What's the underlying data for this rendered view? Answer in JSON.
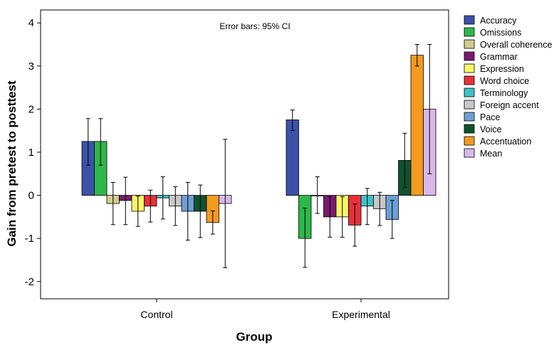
{
  "chart_data": {
    "type": "bar",
    "annotation": "Error bars: 95% CI",
    "xlabel": "Group",
    "ylabel": "Gain from pretest to posttest",
    "categories": [
      "Control",
      "Experimental"
    ],
    "ylim": [
      -2.4,
      4.3
    ],
    "yticks": [
      -2,
      -1,
      0,
      1,
      2,
      3,
      4
    ],
    "grid": false,
    "legend_position": "right",
    "series": [
      {
        "name": "Accuracy",
        "color": "#3B52A8",
        "values": [
          1.25,
          1.75
        ],
        "ci_low": [
          0.7,
          1.5
        ],
        "ci_high": [
          1.78,
          1.98
        ]
      },
      {
        "name": "Omissions",
        "color": "#2DB84A",
        "values": [
          1.25,
          -1.0
        ],
        "ci_low": [
          0.7,
          -1.67
        ],
        "ci_high": [
          1.78,
          -0.3
        ]
      },
      {
        "name": "Overall coherence",
        "color": "#D3CC8F",
        "values": [
          -0.19,
          0.0
        ],
        "ci_low": [
          -0.68,
          -0.42
        ],
        "ci_high": [
          0.3,
          0.43
        ]
      },
      {
        "name": "Grammar",
        "color": "#7A1A6E",
        "values": [
          -0.12,
          -0.5
        ],
        "ci_low": [
          -0.68,
          -0.97
        ],
        "ci_high": [
          0.42,
          -0.03
        ]
      },
      {
        "name": "Expression",
        "color": "#FBF76A",
        "values": [
          -0.37,
          -0.5
        ],
        "ci_low": [
          -0.72,
          -0.97
        ],
        "ci_high": [
          -0.02,
          -0.03
        ]
      },
      {
        "name": "Word choice",
        "color": "#E8303A",
        "values": [
          -0.25,
          -0.69
        ],
        "ci_low": [
          -0.62,
          -1.18
        ],
        "ci_high": [
          0.12,
          -0.2
        ]
      },
      {
        "name": "Terminology",
        "color": "#3EC2C6",
        "values": [
          -0.06,
          -0.25
        ],
        "ci_low": [
          -0.55,
          -0.68
        ],
        "ci_high": [
          0.43,
          0.16
        ]
      },
      {
        "name": "Foreign accent",
        "color": "#C8C8C8",
        "values": [
          -0.25,
          -0.31
        ],
        "ci_low": [
          -0.7,
          -0.7
        ],
        "ci_high": [
          0.2,
          0.07
        ]
      },
      {
        "name": "Pace",
        "color": "#6D9FD4",
        "values": [
          -0.37,
          -0.56
        ],
        "ci_low": [
          -1.04,
          -1.0
        ],
        "ci_high": [
          0.3,
          -0.12
        ]
      },
      {
        "name": "Voice",
        "color": "#0E5230",
        "values": [
          -0.37,
          0.81
        ],
        "ci_low": [
          -0.98,
          0.18
        ],
        "ci_high": [
          0.24,
          1.44
        ]
      },
      {
        "name": "Accentuation",
        "color": "#F39A1F",
        "values": [
          -0.63,
          3.25
        ],
        "ci_low": [
          -0.9,
          3.0
        ],
        "ci_high": [
          -0.36,
          3.5
        ]
      },
      {
        "name": "Mean",
        "color": "#D8B8EA",
        "values": [
          -0.19,
          2.0
        ],
        "ci_low": [
          -1.68,
          0.5
        ],
        "ci_high": [
          1.3,
          3.5
        ]
      }
    ]
  }
}
